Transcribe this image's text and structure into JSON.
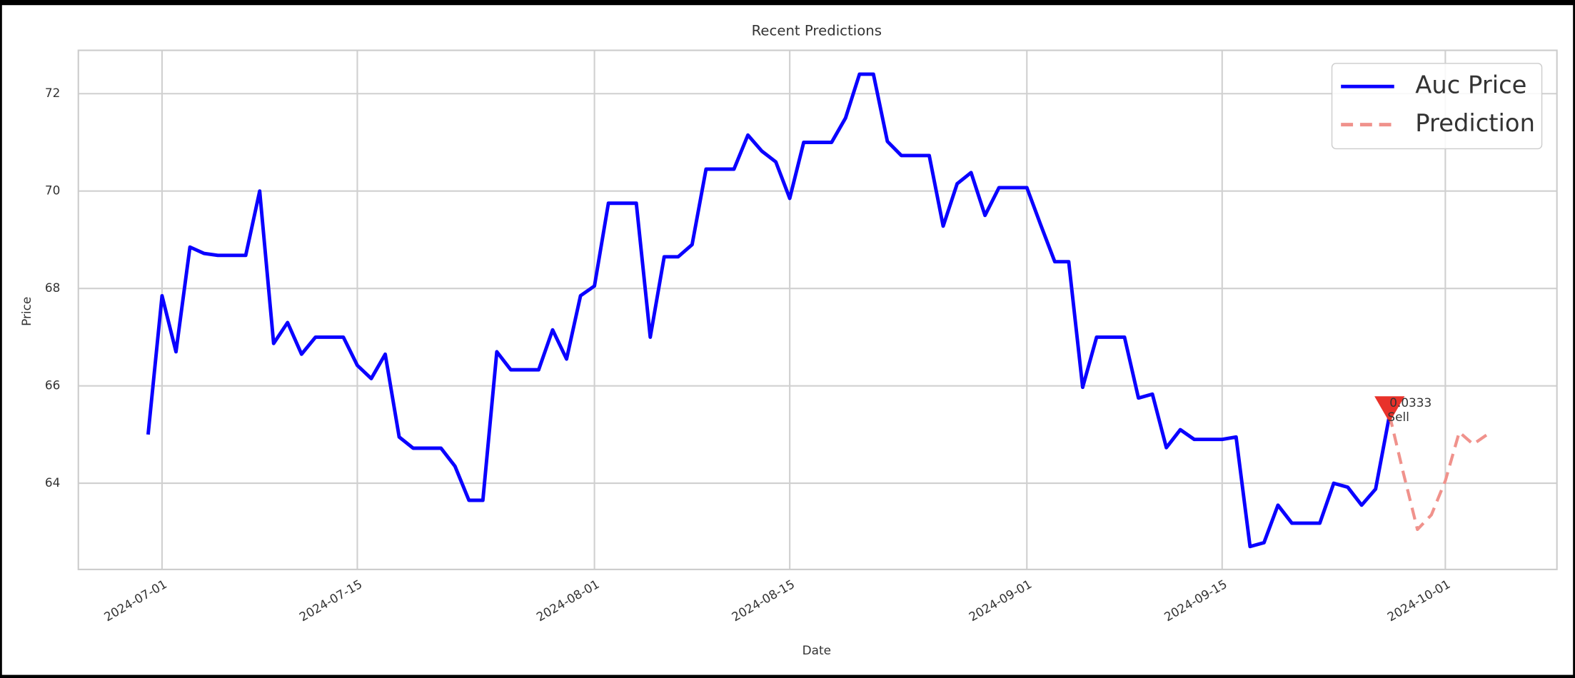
{
  "chart_data": {
    "type": "line",
    "title": "Recent Predictions",
    "x_label": "Date",
    "y_label": "Price",
    "xlim": [
      "2024-06-25",
      "2024-10-09"
    ],
    "ylim": [
      62.23,
      72.89
    ],
    "xticks": [
      "2024-07-01",
      "2024-07-15",
      "2024-08-01",
      "2024-08-15",
      "2024-09-01",
      "2024-09-15",
      "2024-10-01"
    ],
    "yticks": [
      64,
      66,
      68,
      70,
      72
    ],
    "grid": true,
    "legend": "upper right",
    "series": [
      {
        "name": "Auc Price",
        "color": "#0a00ff",
        "dashed": false,
        "x": [
          "2024-06-30",
          "2024-07-01",
          "2024-07-02",
          "2024-07-03",
          "2024-07-04",
          "2024-07-05",
          "2024-07-06",
          "2024-07-07",
          "2024-07-08",
          "2024-07-09",
          "2024-07-10",
          "2024-07-11",
          "2024-07-12",
          "2024-07-13",
          "2024-07-14",
          "2024-07-15",
          "2024-07-16",
          "2024-07-17",
          "2024-07-18",
          "2024-07-19",
          "2024-07-20",
          "2024-07-21",
          "2024-07-22",
          "2024-07-23",
          "2024-07-24",
          "2024-07-25",
          "2024-07-26",
          "2024-07-27",
          "2024-07-28",
          "2024-07-29",
          "2024-07-30",
          "2024-07-31",
          "2024-08-01",
          "2024-08-02",
          "2024-08-03",
          "2024-08-04",
          "2024-08-05",
          "2024-08-06",
          "2024-08-07",
          "2024-08-08",
          "2024-08-09",
          "2024-08-10",
          "2024-08-11",
          "2024-08-12",
          "2024-08-13",
          "2024-08-14",
          "2024-08-15",
          "2024-08-16",
          "2024-08-17",
          "2024-08-18",
          "2024-08-19",
          "2024-08-20",
          "2024-08-21",
          "2024-08-22",
          "2024-08-23",
          "2024-08-24",
          "2024-08-25",
          "2024-08-26",
          "2024-08-27",
          "2024-08-28",
          "2024-08-29",
          "2024-08-30",
          "2024-08-31",
          "2024-09-01",
          "2024-09-02",
          "2024-09-03",
          "2024-09-04",
          "2024-09-05",
          "2024-09-06",
          "2024-09-07",
          "2024-09-08",
          "2024-09-09",
          "2024-09-10",
          "2024-09-11",
          "2024-09-12",
          "2024-09-13",
          "2024-09-14",
          "2024-09-15",
          "2024-09-16",
          "2024-09-17",
          "2024-09-18",
          "2024-09-19",
          "2024-09-20",
          "2024-09-21",
          "2024-09-22",
          "2024-09-23",
          "2024-09-24",
          "2024-09-25",
          "2024-09-26",
          "2024-09-27"
        ],
        "values": [
          65.0,
          67.85,
          66.7,
          68.85,
          68.72,
          68.68,
          68.68,
          68.68,
          70.0,
          66.87,
          67.3,
          66.65,
          67.0,
          67.0,
          67.0,
          66.42,
          66.15,
          66.65,
          64.95,
          64.72,
          64.72,
          64.72,
          64.35,
          63.65,
          63.65,
          66.7,
          66.33,
          66.33,
          66.33,
          67.15,
          66.55,
          67.85,
          68.05,
          69.75,
          69.75,
          69.75,
          67.0,
          68.65,
          68.65,
          68.9,
          70.45,
          70.45,
          70.45,
          71.15,
          70.82,
          70.6,
          69.85,
          71.0,
          71.0,
          71.0,
          71.5,
          72.4,
          72.4,
          71.02,
          70.73,
          70.73,
          70.73,
          69.28,
          70.15,
          70.38,
          69.5,
          70.07,
          70.07,
          70.07,
          69.3,
          68.55,
          68.55,
          65.97,
          67.0,
          67.0,
          67.0,
          65.75,
          65.83,
          64.73,
          65.1,
          64.9,
          64.9,
          64.9,
          64.95,
          62.7,
          62.78,
          63.55,
          63.18,
          63.18,
          63.18,
          64.0,
          63.92,
          63.55,
          63.88,
          65.4
        ]
      },
      {
        "name": "Prediction",
        "color": "#f0928c",
        "dashed": true,
        "x": [
          "2024-09-27",
          "2024-09-28",
          "2024-09-29",
          "2024-09-30",
          "2024-10-01",
          "2024-10-02",
          "2024-10-03",
          "2024-10-04"
        ],
        "values": [
          65.4,
          64.2,
          63.05,
          63.35,
          64.05,
          65.05,
          64.8,
          65.0
        ]
      }
    ],
    "signals": [
      {
        "x": "2024-09-27",
        "value": 65.6,
        "label": "0.0333",
        "action": "Sell",
        "color": "#e8322a"
      }
    ]
  }
}
